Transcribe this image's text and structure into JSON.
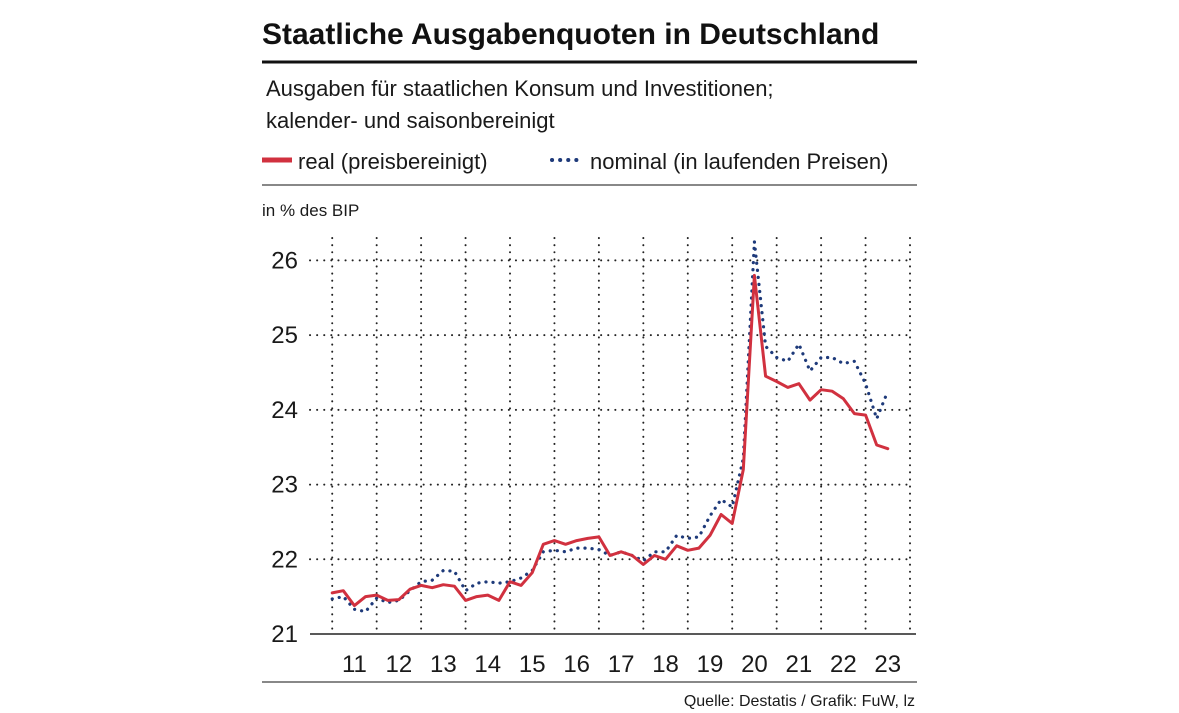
{
  "chart_data": {
    "type": "line",
    "title": "Staatliche Ausgabenquoten in Deutschland",
    "subtitle_lines": [
      "Ausgaben für staatlichen Konsum und Investitionen;",
      "kalender- und saisonbereinigt"
    ],
    "ylabel": "in % des BIP",
    "ylim": [
      21,
      26.3
    ],
    "yticks": [
      21,
      22,
      23,
      24,
      25,
      26
    ],
    "x_range": [
      2010.5,
      2024.0
    ],
    "xticks": [
      {
        "label": "11",
        "value": 2011.5
      },
      {
        "label": "12",
        "value": 2012.5
      },
      {
        "label": "13",
        "value": 2013.5
      },
      {
        "label": "14",
        "value": 2014.5
      },
      {
        "label": "15",
        "value": 2015.5
      },
      {
        "label": "16",
        "value": 2016.5
      },
      {
        "label": "17",
        "value": 2017.5
      },
      {
        "label": "18",
        "value": 2018.5
      },
      {
        "label": "19",
        "value": 2019.5
      },
      {
        "label": "20",
        "value": 2020.5
      },
      {
        "label": "21",
        "value": 2021.5
      },
      {
        "label": "22",
        "value": 2022.5
      },
      {
        "label": "23",
        "value": 2023.5
      }
    ],
    "grid": true,
    "legend_position": "top",
    "x_start": 2011.0,
    "x_step": 0.25,
    "series": [
      {
        "name": "real (preisbereinigt)",
        "color": "#d1313f",
        "style": "solid",
        "values": [
          21.55,
          21.58,
          21.38,
          21.5,
          21.52,
          21.45,
          21.46,
          21.6,
          21.65,
          21.62,
          21.66,
          21.64,
          21.45,
          21.5,
          21.52,
          21.45,
          21.7,
          21.65,
          21.82,
          22.2,
          22.25,
          22.2,
          22.25,
          22.28,
          22.3,
          22.05,
          22.1,
          22.05,
          21.93,
          22.05,
          22.0,
          22.18,
          22.12,
          22.15,
          22.32,
          22.6,
          22.48,
          23.2,
          25.8,
          24.45,
          24.38,
          24.3,
          24.35,
          24.13,
          24.27,
          24.25,
          24.15,
          23.95,
          23.93,
          23.53,
          23.48
        ]
      },
      {
        "name": "nominal (in laufenden Preisen)",
        "color": "#1e3a7a",
        "style": "dotted",
        "values": [
          21.47,
          21.5,
          21.33,
          21.3,
          21.48,
          21.42,
          21.45,
          21.58,
          21.7,
          21.72,
          21.85,
          21.84,
          21.58,
          21.68,
          21.7,
          21.68,
          21.7,
          21.75,
          21.85,
          22.1,
          22.12,
          22.1,
          22.15,
          22.15,
          22.13,
          22.05,
          22.1,
          22.05,
          21.98,
          22.1,
          22.1,
          22.32,
          22.28,
          22.3,
          22.58,
          22.8,
          22.7,
          23.35,
          26.25,
          24.85,
          24.7,
          24.65,
          24.88,
          24.52,
          24.7,
          24.7,
          24.62,
          24.65,
          24.35,
          23.88,
          24.25
        ]
      }
    ],
    "source": "Quelle: Destatis / Grafik: FuW, lz"
  }
}
